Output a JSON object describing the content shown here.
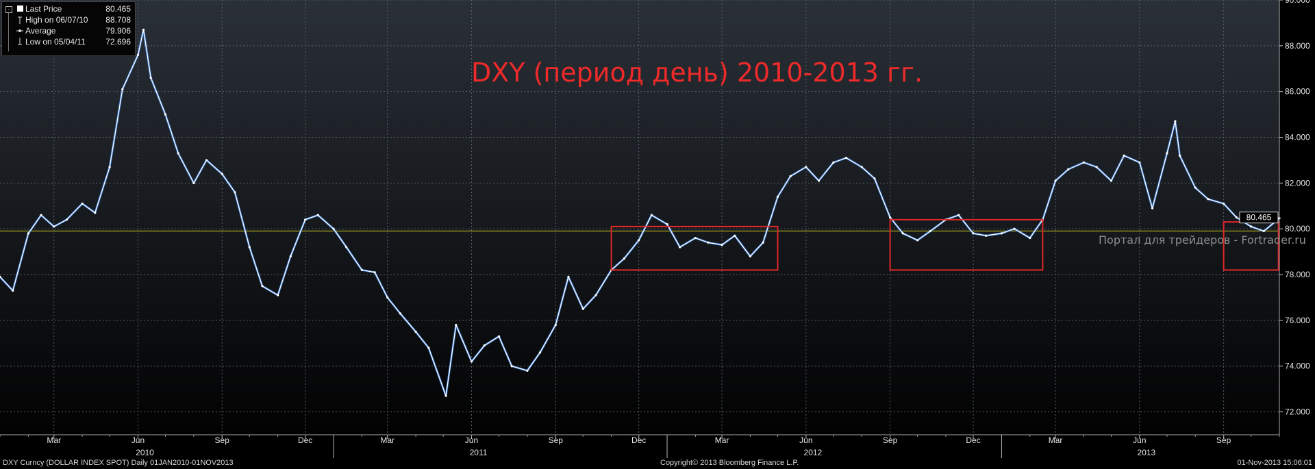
{
  "legend": {
    "items": [
      {
        "label": "Last Price",
        "value": "80.465"
      },
      {
        "label": "High on 06/07/10",
        "value": "88.708"
      },
      {
        "label": "Average",
        "value": "79.906"
      },
      {
        "label": "Low on 05/04/11",
        "value": "72.696"
      }
    ]
  },
  "annotation": {
    "title": "DXY (период день) 2010-2013 гг.",
    "watermark": "Портал для трейдеров - Fortrader.ru"
  },
  "footer": {
    "left": "DXY Curncy (DOLLAR INDEX SPOT)  Daily 01JAN2010-01NOV2013",
    "center": "Copyright© 2013 Bloomberg Finance L.P.",
    "right": "01-Nov-2013 15:06:01"
  },
  "colors": {
    "background_top": "#2a3038",
    "background_bottom": "#000000",
    "price_line": "#ffffff",
    "price_accent": "#3b7dd8",
    "average_line": "#d8d020",
    "rectangles": "#e02828",
    "text": "#e8e8e8",
    "grid": "#5a6068"
  },
  "chart_data": {
    "type": "line",
    "title": "DXY (период день) 2010-2013 гг.",
    "xlabel": "",
    "ylabel": "",
    "ylim": [
      71,
      90
    ],
    "y_ticks": [
      "72.000",
      "74.000",
      "76.000",
      "78.000",
      "80.000",
      "82.000",
      "84.000",
      "86.000",
      "88.000",
      "90.000"
    ],
    "x_tick_labels": [
      "Mar",
      "Jun",
      "Sep",
      "Dec",
      "Mar",
      "Jun",
      "Sep",
      "Dec",
      "Mar",
      "Jun",
      "Sep",
      "Dec",
      "Mar",
      "Jun",
      "Sep"
    ],
    "year_labels": [
      "2010",
      "2011",
      "2012",
      "2013"
    ],
    "x_range": [
      "2010-01-01",
      "2013-11-01"
    ],
    "last_price_label": "80.465",
    "average": 79.906,
    "grid": true,
    "series": [
      {
        "name": "Last Price",
        "x": [
          "2010-01-01",
          "2010-01-15",
          "2010-02-01",
          "2010-02-15",
          "2010-03-01",
          "2010-03-15",
          "2010-04-01",
          "2010-04-15",
          "2010-05-01",
          "2010-05-15",
          "2010-06-01",
          "2010-06-07",
          "2010-06-15",
          "2010-07-01",
          "2010-07-15",
          "2010-08-01",
          "2010-08-15",
          "2010-09-01",
          "2010-09-15",
          "2010-10-01",
          "2010-10-15",
          "2010-11-01",
          "2010-11-15",
          "2010-12-01",
          "2010-12-15",
          "2011-01-01",
          "2011-01-15",
          "2011-02-01",
          "2011-02-15",
          "2011-03-01",
          "2011-03-15",
          "2011-04-01",
          "2011-04-15",
          "2011-05-04",
          "2011-05-15",
          "2011-06-01",
          "2011-06-15",
          "2011-07-01",
          "2011-07-15",
          "2011-08-01",
          "2011-08-15",
          "2011-09-01",
          "2011-09-15",
          "2011-10-01",
          "2011-10-15",
          "2011-11-01",
          "2011-11-15",
          "2011-12-01",
          "2011-12-15",
          "2012-01-01",
          "2012-01-15",
          "2012-02-01",
          "2012-02-15",
          "2012-03-01",
          "2012-03-15",
          "2012-04-01",
          "2012-04-15",
          "2012-05-01",
          "2012-05-15",
          "2012-06-01",
          "2012-06-15",
          "2012-07-01",
          "2012-07-15",
          "2012-08-01",
          "2012-08-15",
          "2012-09-01",
          "2012-09-15",
          "2012-10-01",
          "2012-10-15",
          "2012-11-01",
          "2012-11-15",
          "2012-12-01",
          "2012-12-15",
          "2013-01-01",
          "2013-01-15",
          "2013-02-01",
          "2013-02-15",
          "2013-03-01",
          "2013-03-15",
          "2013-04-01",
          "2013-04-15",
          "2013-05-01",
          "2013-05-15",
          "2013-06-01",
          "2013-06-15",
          "2013-07-01",
          "2013-07-10",
          "2013-07-15",
          "2013-08-01",
          "2013-08-15",
          "2013-09-01",
          "2013-09-15",
          "2013-10-01",
          "2013-10-15",
          "2013-11-01"
        ],
        "y": [
          77.9,
          77.3,
          79.8,
          80.6,
          80.1,
          80.4,
          81.1,
          80.7,
          82.7,
          86.1,
          87.6,
          88.7,
          86.6,
          85.0,
          83.3,
          82.0,
          83.0,
          82.4,
          81.6,
          79.2,
          77.5,
          77.1,
          78.8,
          80.4,
          80.6,
          80.0,
          79.2,
          78.2,
          78.1,
          77.0,
          76.3,
          75.5,
          74.8,
          72.7,
          75.8,
          74.2,
          74.9,
          75.3,
          74.0,
          73.8,
          74.6,
          75.8,
          77.9,
          76.5,
          77.1,
          78.2,
          78.7,
          79.5,
          80.6,
          80.2,
          79.2,
          79.6,
          79.4,
          79.3,
          79.7,
          78.8,
          79.4,
          81.4,
          82.3,
          82.7,
          82.1,
          82.9,
          83.1,
          82.7,
          82.2,
          80.5,
          79.8,
          79.5,
          79.9,
          80.4,
          80.6,
          79.8,
          79.7,
          79.8,
          80.0,
          79.6,
          80.4,
          82.1,
          82.6,
          82.9,
          82.7,
          82.1,
          83.2,
          82.9,
          80.9,
          83.3,
          84.7,
          83.2,
          81.8,
          81.3,
          81.1,
          80.5,
          80.1,
          79.9,
          80.465
        ]
      },
      {
        "name": "Average",
        "x": [
          "2010-01-01",
          "2013-11-01"
        ],
        "y": [
          79.906,
          79.906
        ]
      }
    ],
    "annotations": [
      {
        "type": "rectangle",
        "x_range": [
          "2011-11-01",
          "2012-05-01"
        ],
        "y_range": [
          78.2,
          80.1
        ]
      },
      {
        "type": "rectangle",
        "x_range": [
          "2012-09-01",
          "2013-02-15"
        ],
        "y_range": [
          78.2,
          80.4
        ]
      },
      {
        "type": "rectangle",
        "x_range": [
          "2013-09-01",
          "2013-10-31"
        ],
        "y_range": [
          78.2,
          80.3
        ]
      }
    ]
  }
}
